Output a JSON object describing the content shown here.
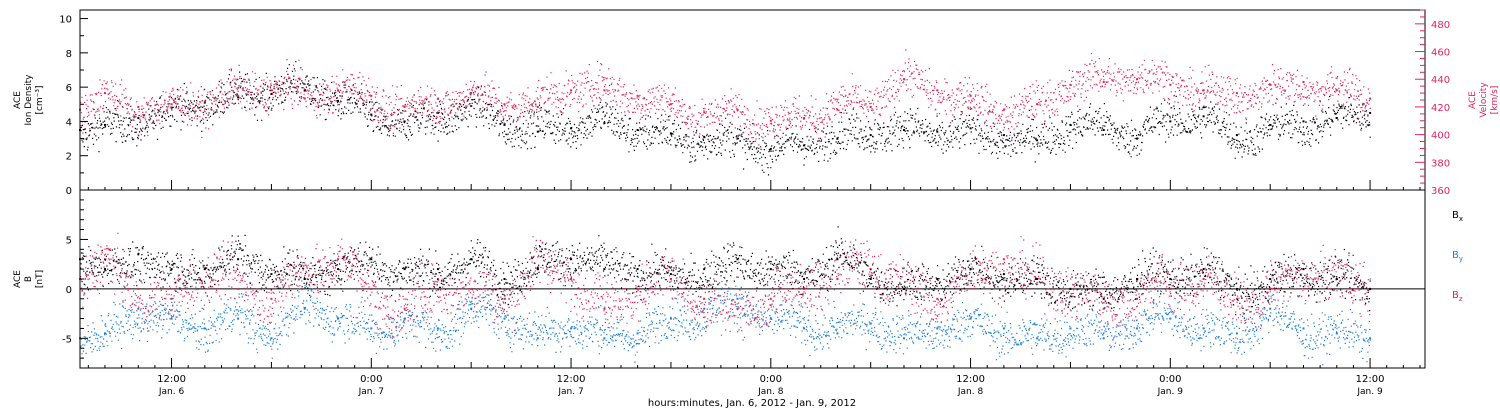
{
  "time_axis": {
    "caption": "hours:minutes, Jan.  6, 2012 - Jan.  9, 2012",
    "start_hour": 6.5,
    "end_hour": 87.3,
    "ticks": [
      {
        "hour": 12,
        "time": "12:00",
        "day": "Jan. 6"
      },
      {
        "hour": 24,
        "time": "0:00",
        "day": "Jan. 7"
      },
      {
        "hour": 36,
        "time": "12:00",
        "day": "Jan. 7"
      },
      {
        "hour": 48,
        "time": "0:00",
        "day": "Jan. 8"
      },
      {
        "hour": 60,
        "time": "12:00",
        "day": "Jan. 8"
      },
      {
        "hour": 72,
        "time": "0:00",
        "day": "Jan. 9"
      },
      {
        "hour": 84,
        "time": "12:00",
        "day": "Jan. 9"
      }
    ]
  },
  "colors": {
    "black": "#000000",
    "pink": "#e0245e",
    "blue": "#1a7fd6"
  },
  "chart_data": [
    {
      "type": "scatter",
      "ylabel_left": [
        "ACE",
        "Ion Density",
        "[cm⁻³]"
      ],
      "ylabel_right": [
        "ACE",
        "Velocity",
        "[km/s]"
      ],
      "ylim_left": [
        0,
        10.5
      ],
      "yticks_left": [
        "0",
        "2",
        "4",
        "6",
        "8",
        "10"
      ],
      "ylim_right": [
        360,
        490
      ],
      "yticks_right": [
        "360",
        "380",
        "400",
        "420",
        "440",
        "460",
        "480"
      ],
      "series": [
        {
          "axis": "left",
          "color": "black",
          "x": [
            6.5,
            8,
            10,
            12,
            14,
            16,
            18,
            20,
            22,
            24,
            26,
            28,
            30,
            32,
            34,
            36,
            38,
            40,
            42,
            44,
            46,
            48,
            50,
            52,
            54,
            56,
            58,
            60,
            62,
            64,
            66,
            68,
            70,
            72,
            74,
            76,
            78,
            80,
            82,
            84
          ],
          "y": [
            3.5,
            3.8,
            4.2,
            4.8,
            5.1,
            5.4,
            5.6,
            5.8,
            5.2,
            4.4,
            4.0,
            4.5,
            4.9,
            3.8,
            3.4,
            3.6,
            3.9,
            3.5,
            3.3,
            3.1,
            3.0,
            2.4,
            2.6,
            3.0,
            3.2,
            3.5,
            3.4,
            3.6,
            3.2,
            2.9,
            3.8,
            3.5,
            3.0,
            4.0,
            4.3,
            3.2,
            3.8,
            4.0,
            4.2,
            4.5
          ]
        },
        {
          "axis": "right",
          "color": "pink",
          "x": [
            6.5,
            8,
            10,
            12,
            14,
            16,
            18,
            20,
            22,
            24,
            26,
            28,
            30,
            32,
            34,
            36,
            38,
            40,
            42,
            44,
            46,
            48,
            50,
            52,
            54,
            56,
            58,
            60,
            62,
            64,
            66,
            68,
            70,
            72,
            74,
            76,
            78,
            80,
            82,
            84
          ],
          "y": [
            418,
            430,
            420,
            422,
            424,
            428,
            432,
            426,
            432,
            428,
            420,
            426,
            430,
            422,
            420,
            432,
            432,
            428,
            422,
            416,
            418,
            410,
            412,
            418,
            420,
            440,
            432,
            428,
            418,
            422,
            436,
            438,
            440,
            436,
            432,
            430,
            436,
            438,
            432,
            426
          ]
        }
      ]
    },
    {
      "type": "scatter",
      "ylabel_left": [
        "ACE",
        "B",
        "[nT]"
      ],
      "ylim": [
        -8,
        10
      ],
      "yticks": [
        "-5",
        "0",
        "5"
      ],
      "legend": [
        {
          "label": "Bx",
          "color": "black"
        },
        {
          "label": "By",
          "color": "blue"
        },
        {
          "label": "Bz",
          "color": "pink"
        }
      ],
      "series": [
        {
          "name": "Bx",
          "color": "black",
          "x": [
            6.5,
            8,
            10,
            12,
            14,
            16,
            18,
            20,
            22,
            24,
            26,
            28,
            30,
            32,
            34,
            36,
            38,
            40,
            42,
            44,
            46,
            48,
            50,
            52,
            54,
            56,
            58,
            60,
            62,
            64,
            66,
            68,
            70,
            72,
            74,
            76,
            78,
            80,
            82,
            84
          ],
          "y": [
            3,
            2,
            3.5,
            2,
            2,
            3,
            1.5,
            1,
            2,
            3,
            2,
            2,
            3,
            1,
            2,
            3,
            2,
            2,
            1.5,
            2,
            3,
            2,
            1,
            3,
            1,
            0,
            1,
            2,
            1.5,
            1,
            0,
            -1,
            1,
            1,
            2,
            0,
            1,
            2,
            1,
            0
          ]
        },
        {
          "name": "By",
          "color": "blue",
          "x": [
            6.5,
            8,
            10,
            12,
            14,
            16,
            18,
            20,
            22,
            24,
            26,
            28,
            30,
            32,
            34,
            36,
            38,
            40,
            42,
            44,
            46,
            48,
            50,
            52,
            54,
            56,
            58,
            60,
            62,
            64,
            66,
            68,
            70,
            72,
            74,
            76,
            78,
            80,
            82,
            84
          ],
          "y": [
            -5,
            -4.5,
            -2,
            -3,
            -4,
            -3,
            -5,
            -2,
            -3,
            -4,
            -3,
            -4,
            -2,
            -3,
            -5,
            -4,
            -5,
            -4.5,
            -3,
            -2,
            -1,
            -3,
            -4,
            -4.5,
            -3.5,
            -5,
            -4,
            -3,
            -4,
            -5,
            -4,
            -5,
            -4,
            -3,
            -4,
            -4.5,
            -2,
            -4,
            -4.5,
            -5
          ]
        },
        {
          "name": "Bz",
          "color": "pink",
          "x": [
            6.5,
            8,
            10,
            12,
            14,
            16,
            18,
            20,
            22,
            24,
            26,
            28,
            30,
            32,
            34,
            36,
            38,
            40,
            42,
            44,
            46,
            48,
            50,
            52,
            54,
            56,
            58,
            60,
            62,
            64,
            66,
            68,
            70,
            72,
            74,
            76,
            78,
            80,
            82,
            84
          ],
          "y": [
            1,
            3,
            0,
            -1,
            2,
            0,
            -1,
            1,
            3,
            0,
            -2,
            1,
            0,
            -1,
            2,
            1,
            -2,
            0,
            1,
            -1,
            -2,
            -1,
            0,
            1,
            2,
            0,
            -1,
            2,
            3,
            1,
            0,
            -2,
            -1,
            0,
            1,
            -1,
            0,
            2,
            1,
            0
          ]
        }
      ]
    }
  ]
}
